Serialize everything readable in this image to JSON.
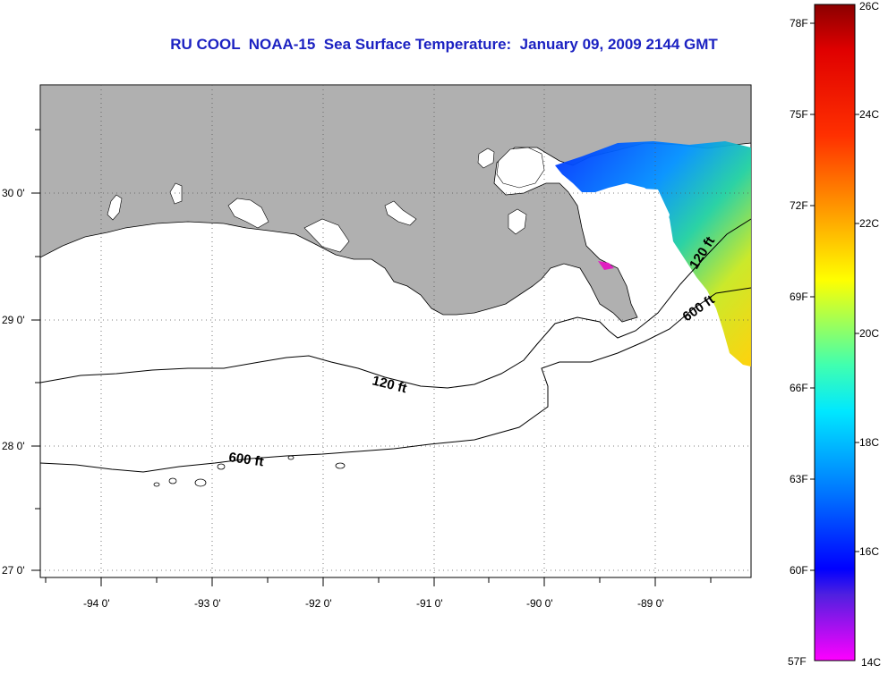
{
  "title": "RU COOL  NOAA-15  Sea Surface Temperature:  January 09, 2009 2144 GMT",
  "map": {
    "lat_labels": [
      "30 0'",
      "29 0'",
      "28 0'",
      "27 0'"
    ],
    "lon_labels": [
      "-94 0'",
      "-93 0'",
      "-92 0'",
      "-91 0'",
      "-90 0'",
      "-89 0'"
    ],
    "contours": [
      {
        "label": "120 ft",
        "depth_ft": 120
      },
      {
        "label": "600 ft",
        "depth_ft": 600
      },
      {
        "label": "120 ft",
        "depth_ft": 120
      },
      {
        "label": "600 ft",
        "depth_ft": 600
      }
    ],
    "colors": {
      "land": "#b0b0b0",
      "water": "#ffffff",
      "isobath": "#000000"
    }
  },
  "colorbar": {
    "fahrenheit_labels": [
      "78F",
      "75F",
      "72F",
      "69F",
      "66F",
      "63F",
      "60F",
      "57F"
    ],
    "celsius_labels": [
      "26C",
      "24C",
      "22C",
      "20C",
      "18C",
      "16C",
      "14C"
    ],
    "stops": [
      "#8b0000",
      "#ff0000",
      "#ff8c00",
      "#ffff00",
      "#00ffff",
      "#0070ff",
      "#0000ff",
      "#ff00ff"
    ]
  }
}
